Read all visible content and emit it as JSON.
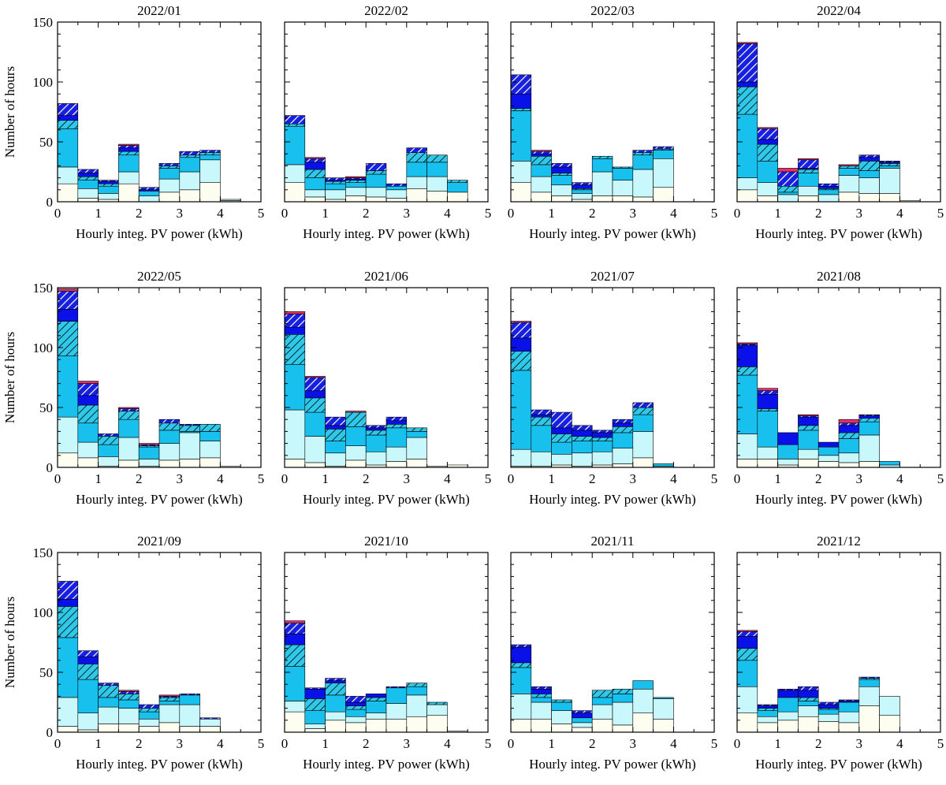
{
  "chart_data": {
    "type": "stacked-histogram",
    "shared": {
      "xlabel": "Hourly integ. PV power (kWh)",
      "ylabel": "Number of hours",
      "xlim": [
        0,
        5
      ],
      "ylim": [
        0,
        150
      ],
      "xticks": [
        "0",
        "1",
        "2",
        "3",
        "4",
        "5"
      ],
      "yticks": [
        "0",
        "50",
        "100",
        "150"
      ],
      "bin_width": 0.5,
      "bin_starts": [
        0,
        0.5,
        1,
        1.5,
        2,
        2.5,
        3,
        3.5,
        4,
        4.5
      ],
      "layer_styles": [
        {
          "fill": "#fefef0",
          "hatch": false
        },
        {
          "fill": "#c8f8fc",
          "hatch": false
        },
        {
          "fill": "#18c0ee",
          "hatch": false
        },
        {
          "fill": "#30c8e8",
          "hatch": true,
          "hatch_color": "#000000"
        },
        {
          "fill": "#0a10e8",
          "hatch": false
        },
        {
          "fill": "#1820e0",
          "hatch": true,
          "hatch_color": "#ffffff"
        },
        {
          "fill": "#e03068",
          "hatch": false
        }
      ]
    },
    "panels": [
      {
        "title": "2022/01",
        "series": [
          [
            15,
            3,
            2,
            15,
            0,
            8,
            10,
            16,
            1,
            0
          ],
          [
            14,
            8,
            5,
            10,
            5,
            11,
            15,
            19,
            1,
            0
          ],
          [
            32,
            7,
            6,
            14,
            4,
            9,
            12,
            4,
            0,
            0
          ],
          [
            7,
            3,
            2,
            3,
            0,
            2,
            2,
            2,
            0,
            0
          ],
          [
            4,
            3,
            2,
            3,
            1,
            0,
            0,
            0,
            0,
            0
          ],
          [
            10,
            3,
            1,
            2,
            2,
            2,
            3,
            2,
            0,
            0
          ],
          [
            0,
            0,
            0,
            1,
            0,
            0,
            0,
            0,
            0,
            0
          ]
        ]
      },
      {
        "title": "2022/02",
        "series": [
          [
            16,
            4,
            2,
            5,
            4,
            3,
            11,
            9,
            8,
            0
          ],
          [
            15,
            6,
            8,
            7,
            8,
            7,
            10,
            12,
            0,
            0
          ],
          [
            32,
            10,
            5,
            4,
            11,
            3,
            12,
            12,
            8,
            0
          ],
          [
            2,
            7,
            2,
            2,
            3,
            0,
            8,
            6,
            2,
            0
          ],
          [
            0,
            6,
            1,
            1,
            0,
            0,
            0,
            0,
            0,
            0
          ],
          [
            7,
            3,
            2,
            1,
            6,
            2,
            4,
            0,
            0,
            0
          ],
          [
            0,
            1,
            0,
            1,
            0,
            0,
            0,
            0,
            0,
            0
          ]
        ]
      },
      {
        "title": "2022/03",
        "series": [
          [
            16,
            8,
            5,
            2,
            5,
            5,
            4,
            12,
            0,
            0
          ],
          [
            18,
            13,
            9,
            5,
            20,
            13,
            23,
            24,
            0,
            0
          ],
          [
            42,
            10,
            8,
            3,
            11,
            10,
            12,
            7,
            0,
            0
          ],
          [
            2,
            7,
            2,
            1,
            2,
            1,
            2,
            1,
            0,
            0
          ],
          [
            12,
            2,
            5,
            3,
            0,
            0,
            0,
            0,
            0,
            0
          ],
          [
            16,
            2,
            3,
            2,
            0,
            0,
            2,
            2,
            0,
            0
          ],
          [
            0,
            1,
            0,
            0,
            0,
            0,
            0,
            0,
            0,
            0
          ]
        ]
      },
      {
        "title": "2022/04",
        "series": [
          [
            10,
            5,
            0,
            5,
            0,
            8,
            7,
            7,
            1,
            0
          ],
          [
            10,
            11,
            6,
            8,
            6,
            14,
            13,
            21,
            0,
            0
          ],
          [
            53,
            18,
            2,
            11,
            4,
            6,
            6,
            2,
            0,
            0
          ],
          [
            23,
            14,
            5,
            3,
            1,
            2,
            8,
            2,
            0,
            0
          ],
          [
            4,
            4,
            0,
            1,
            2,
            0,
            3,
            1,
            0,
            0
          ],
          [
            32,
            9,
            12,
            7,
            2,
            0,
            2,
            1,
            0,
            0
          ],
          [
            1,
            1,
            3,
            1,
            0,
            1,
            0,
            0,
            0,
            0
          ]
        ]
      },
      {
        "title": "2022/05",
        "series": [
          [
            12,
            8,
            1,
            6,
            1,
            6,
            7,
            8,
            1,
            0
          ],
          [
            30,
            13,
            8,
            19,
            6,
            14,
            22,
            14,
            0,
            0
          ],
          [
            51,
            16,
            10,
            15,
            10,
            11,
            1,
            8,
            0,
            0
          ],
          [
            29,
            15,
            7,
            7,
            1,
            6,
            5,
            6,
            0,
            0
          ],
          [
            10,
            8,
            0,
            0,
            0,
            0,
            0,
            0,
            0,
            0
          ],
          [
            15,
            10,
            2,
            2,
            1,
            3,
            1,
            0,
            0,
            0
          ],
          [
            2,
            2,
            0,
            1,
            1,
            0,
            0,
            0,
            0,
            0
          ]
        ]
      },
      {
        "title": "2021/06",
        "series": [
          [
            7,
            4,
            1,
            6,
            2,
            5,
            7,
            1,
            2,
            0
          ],
          [
            41,
            22,
            11,
            12,
            11,
            12,
            18,
            0,
            0,
            0
          ],
          [
            38,
            20,
            10,
            16,
            14,
            16,
            5,
            0,
            0,
            0
          ],
          [
            25,
            12,
            10,
            12,
            4,
            3,
            3,
            0,
            0,
            0
          ],
          [
            6,
            6,
            3,
            0,
            2,
            3,
            0,
            0,
            0,
            0
          ],
          [
            11,
            11,
            7,
            0,
            2,
            3,
            0,
            0,
            0,
            0
          ],
          [
            2,
            1,
            0,
            1,
            0,
            0,
            0,
            0,
            0,
            0
          ]
        ]
      },
      {
        "title": "2021/07",
        "series": [
          [
            1,
            1,
            2,
            1,
            2,
            3,
            8,
            0,
            0,
            0
          ],
          [
            14,
            12,
            9,
            11,
            11,
            13,
            22,
            1,
            0,
            0
          ],
          [
            66,
            22,
            10,
            10,
            9,
            13,
            14,
            2,
            0,
            0
          ],
          [
            16,
            7,
            7,
            4,
            3,
            5,
            6,
            0,
            0,
            0
          ],
          [
            11,
            2,
            5,
            5,
            4,
            3,
            0,
            0,
            0,
            0
          ],
          [
            13,
            4,
            13,
            4,
            2,
            3,
            4,
            0,
            0,
            0
          ],
          [
            1,
            0,
            0,
            0,
            0,
            0,
            0,
            0,
            0,
            0
          ]
        ]
      },
      {
        "title": "2021/08",
        "series": [
          [
            7,
            7,
            2,
            7,
            5,
            4,
            5,
            0,
            0,
            0
          ],
          [
            21,
            10,
            5,
            8,
            5,
            8,
            22,
            2,
            0,
            0
          ],
          [
            49,
            30,
            12,
            16,
            7,
            12,
            11,
            3,
            0,
            0
          ],
          [
            7,
            2,
            0,
            4,
            0,
            5,
            3,
            0,
            0,
            0
          ],
          [
            18,
            12,
            10,
            7,
            4,
            6,
            2,
            0,
            0,
            0
          ],
          [
            1,
            3,
            0,
            1,
            0,
            2,
            1,
            0,
            0,
            0
          ],
          [
            1,
            2,
            0,
            1,
            0,
            3,
            0,
            0,
            0,
            0
          ]
        ]
      },
      {
        "title": "2021/09",
        "series": [
          [
            5,
            2,
            7,
            7,
            5,
            8,
            5,
            5,
            0,
            0
          ],
          [
            24,
            14,
            14,
            13,
            6,
            15,
            18,
            6,
            0,
            0
          ],
          [
            50,
            28,
            8,
            7,
            6,
            3,
            8,
            0,
            0,
            0
          ],
          [
            26,
            13,
            10,
            5,
            3,
            3,
            0,
            0,
            0,
            0
          ],
          [
            6,
            6,
            0,
            0,
            0,
            0,
            0,
            0,
            0,
            0
          ],
          [
            15,
            5,
            2,
            2,
            3,
            1,
            1,
            1,
            0,
            0
          ],
          [
            0,
            0,
            0,
            1,
            0,
            1,
            0,
            0,
            0,
            0
          ]
        ]
      },
      {
        "title": "2021/10",
        "series": [
          [
            17,
            3,
            10,
            8,
            11,
            11,
            13,
            14,
            1,
            0
          ],
          [
            9,
            4,
            7,
            5,
            5,
            13,
            18,
            9,
            0,
            0
          ],
          [
            29,
            11,
            14,
            6,
            10,
            13,
            7,
            0,
            0,
            0
          ],
          [
            18,
            10,
            10,
            3,
            3,
            0,
            3,
            2,
            0,
            0
          ],
          [
            9,
            8,
            2,
            3,
            3,
            0,
            0,
            0,
            0,
            0
          ],
          [
            9,
            1,
            2,
            5,
            0,
            1,
            0,
            0,
            0,
            0
          ],
          [
            2,
            0,
            0,
            0,
            0,
            0,
            0,
            0,
            0,
            0
          ]
        ]
      },
      {
        "title": "2021/11",
        "series": [
          [
            11,
            11,
            7,
            4,
            11,
            6,
            16,
            11,
            0,
            0
          ],
          [
            21,
            14,
            11,
            4,
            12,
            19,
            20,
            17,
            0,
            0
          ],
          [
            22,
            4,
            7,
            4,
            6,
            7,
            7,
            1,
            0,
            0
          ],
          [
            4,
            3,
            2,
            0,
            6,
            4,
            0,
            0,
            0,
            0
          ],
          [
            13,
            4,
            0,
            4,
            0,
            0,
            0,
            0,
            0,
            0
          ],
          [
            2,
            2,
            0,
            2,
            0,
            0,
            0,
            0,
            0,
            0
          ],
          [
            0,
            0,
            0,
            0,
            0,
            0,
            0,
            0,
            0,
            0
          ]
        ]
      },
      {
        "title": "2021/12",
        "series": [
          [
            16,
            8,
            10,
            13,
            9,
            8,
            22,
            14,
            0,
            0
          ],
          [
            22,
            5,
            7,
            9,
            6,
            9,
            16,
            16,
            0,
            0
          ],
          [
            22,
            5,
            12,
            4,
            4,
            8,
            6,
            0,
            0,
            0
          ],
          [
            10,
            2,
            0,
            3,
            1,
            0,
            1,
            0,
            0,
            0
          ],
          [
            10,
            2,
            6,
            6,
            3,
            1,
            0,
            0,
            0,
            0
          ],
          [
            4,
            1,
            1,
            3,
            2,
            1,
            1,
            0,
            0,
            0
          ],
          [
            1,
            0,
            0,
            0,
            0,
            0,
            0,
            0,
            0,
            0
          ]
        ]
      }
    ]
  }
}
